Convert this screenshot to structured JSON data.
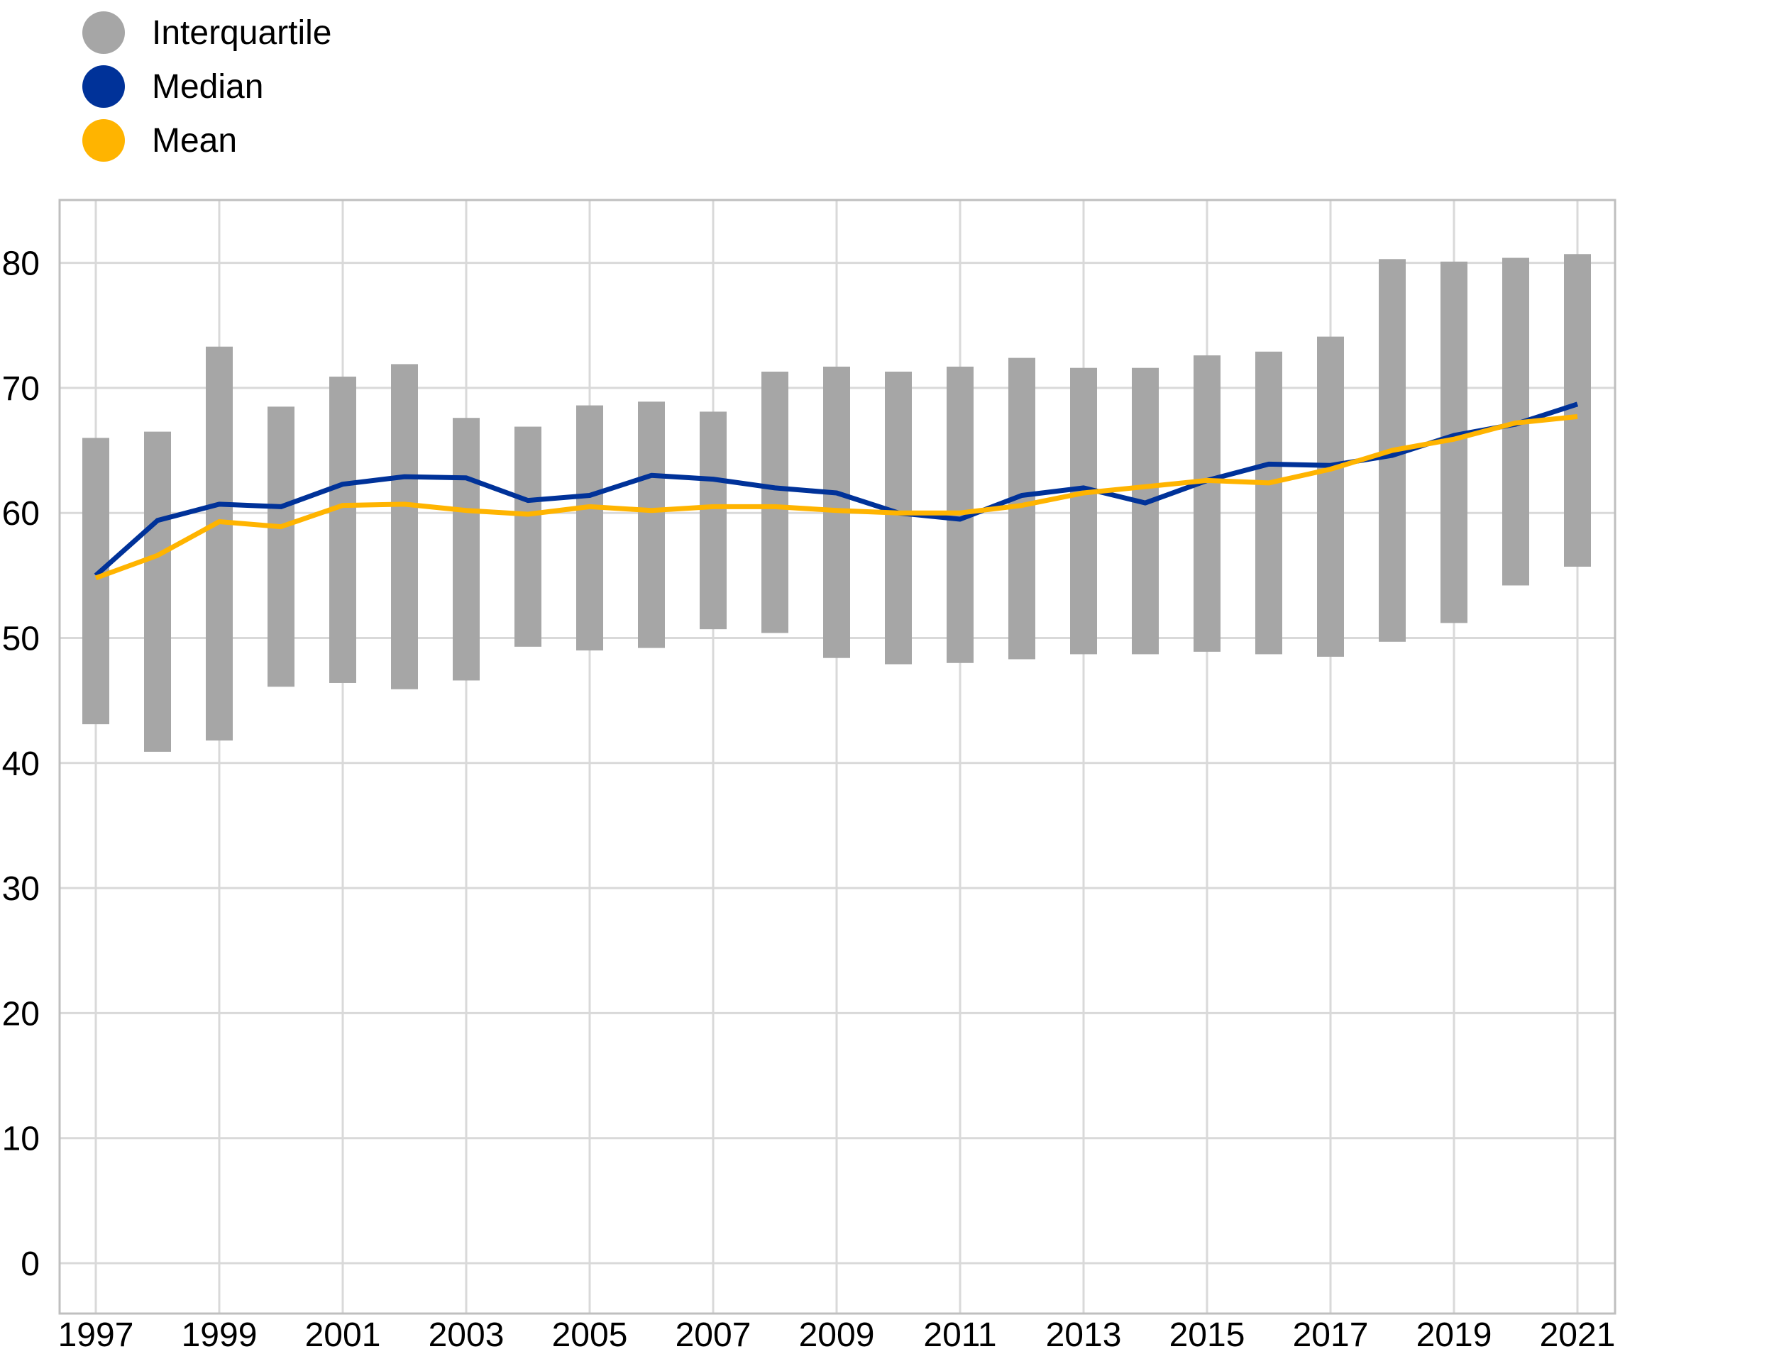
{
  "colors": {
    "interquartile": "#a6a6a6",
    "median": "#003299",
    "mean": "#ffb400",
    "grid": "#d9d9d9",
    "frame": "#bfbfbf"
  },
  "legend": [
    {
      "label": "Interquartile",
      "color": "#a6a6a6",
      "icon": "circle-swatch"
    },
    {
      "label": "Median",
      "color": "#003299",
      "icon": "circle-swatch"
    },
    {
      "label": "Mean",
      "color": "#ffb400",
      "icon": "circle-swatch"
    }
  ],
  "chart_data": {
    "type": "line",
    "title": "",
    "xlabel": "",
    "ylabel": "",
    "grid": true,
    "legend_position": "top-left",
    "x": [
      1997,
      1998,
      1999,
      2000,
      2001,
      2002,
      2003,
      2004,
      2005,
      2006,
      2007,
      2008,
      2009,
      2010,
      2011,
      2012,
      2013,
      2014,
      2015,
      2016,
      2017,
      2018,
      2019,
      2020,
      2021
    ],
    "x_tick_labels": [
      "1997",
      "1999",
      "2001",
      "2003",
      "2005",
      "2007",
      "2009",
      "2011",
      "2013",
      "2015",
      "2017",
      "2019",
      "2021"
    ],
    "ylim": [
      -4,
      85
    ],
    "y_ticks": [
      0,
      10,
      20,
      30,
      40,
      50,
      60,
      70,
      80
    ],
    "interquartile": {
      "name": "Interquartile",
      "low": [
        43.1,
        40.9,
        41.8,
        46.1,
        46.4,
        45.9,
        46.6,
        49.3,
        49.0,
        49.2,
        50.7,
        50.4,
        48.4,
        47.9,
        48.0,
        48.3,
        48.7,
        48.7,
        48.9,
        48.7,
        48.5,
        49.7,
        51.2,
        54.2,
        55.7
      ],
      "high": [
        66.0,
        66.5,
        73.3,
        68.5,
        70.9,
        71.9,
        67.6,
        66.9,
        68.6,
        68.9,
        68.1,
        71.3,
        71.7,
        71.3,
        71.7,
        72.4,
        71.6,
        71.6,
        72.6,
        72.9,
        74.1,
        80.3,
        80.1,
        80.4,
        80.7
      ]
    },
    "series": [
      {
        "name": "Median",
        "values": [
          55.0,
          59.4,
          60.7,
          60.5,
          62.3,
          62.9,
          62.8,
          61.0,
          61.4,
          63.0,
          62.7,
          62.0,
          61.6,
          60.0,
          59.5,
          61.4,
          62.0,
          60.8,
          62.6,
          63.9,
          63.8,
          64.6,
          66.2,
          67.1,
          68.7
        ]
      },
      {
        "name": "Mean",
        "values": [
          54.8,
          56.6,
          59.3,
          58.9,
          60.6,
          60.7,
          60.2,
          59.9,
          60.5,
          60.2,
          60.5,
          60.5,
          60.2,
          60.0,
          60.0,
          60.6,
          61.6,
          62.1,
          62.6,
          62.4,
          63.5,
          65.0,
          65.9,
          67.2,
          67.7
        ]
      }
    ]
  }
}
